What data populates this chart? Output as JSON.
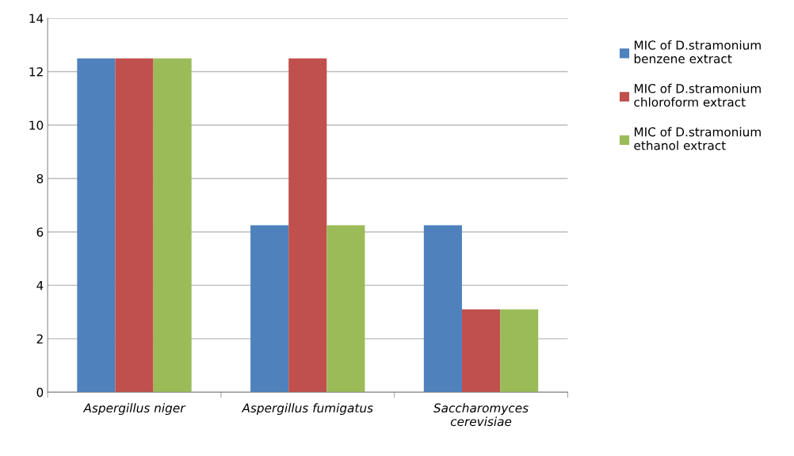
{
  "chart_data": {
    "type": "bar",
    "categories": [
      "Aspergillus niger",
      "Aspergillus fumigatus",
      "Saccharomyces\ncerevisiae"
    ],
    "series": [
      {
        "name": "MIC of D.stramonium\nbenzene extract",
        "color": "#4f81bd",
        "values": [
          12.5,
          6.25,
          6.25
        ]
      },
      {
        "name": "MIC of D.stramonium\nchloroform extract",
        "color": "#c0504d",
        "values": [
          12.5,
          12.5,
          3.1
        ]
      },
      {
        "name": "MIC of D.stramonium\nethanol extract",
        "color": "#9bbb59",
        "values": [
          12.5,
          6.25,
          3.1
        ]
      }
    ],
    "ylim": [
      0,
      14
    ],
    "yticks": [
      0,
      2,
      4,
      6,
      8,
      10,
      12,
      14
    ],
    "grid": "y",
    "legend": "right"
  }
}
